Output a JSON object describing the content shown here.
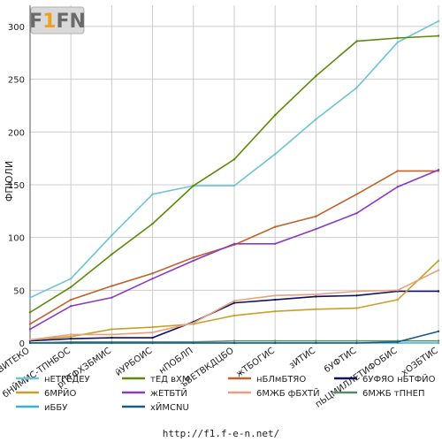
{
  "logo_text": "F1FN",
  "footer_url": "http://f1.f-e-n.net/",
  "chart_data": {
    "type": "line",
    "title": "",
    "xlabel": "",
    "ylabel": "ФПЮЛИ",
    "ylim": [
      0,
      320
    ],
    "yticks": [
      0,
      50,
      100,
      150,
      200,
      250,
      300
    ],
    "grid": true,
    "legend_placement": "bottom",
    "categories": [
      "вВИТЕКО",
      "бНЙМИС-ТПНБОС",
      "рПТФХЗБМИС",
      "йУРБОИС",
      "нПОБЛП",
      "ъВЕТВКДЦБО",
      "жТБОГИС",
      "зИТИС",
      "бУФТИС",
      "пЬЦМИЛЛЕТИФОБИС",
      "хОЗБТИС"
    ],
    "series": [
      {
        "name": "нЕТГЕДЕУ",
        "color": "#6cc4d4",
        "values": [
          43,
          61,
          102,
          141,
          149,
          149,
          179,
          212,
          242,
          285,
          305
        ]
      },
      {
        "name": "тЕД вХМ",
        "color": "#5a8a0a",
        "values": [
          29,
          53,
          84,
          113,
          149,
          174,
          216,
          253,
          286,
          289,
          291
        ]
      },
      {
        "name": "нБЛмБТЯО",
        "color": "#c0622a",
        "values": [
          18,
          41,
          54,
          66,
          81,
          93,
          110,
          120,
          141,
          163,
          163
        ]
      },
      {
        "name": "6УФЯО нБТФЙО",
        "color": "#101060",
        "values": [
          2,
          4,
          5,
          5,
          20,
          38,
          41,
          44,
          45,
          49,
          49
        ]
      },
      {
        "name": "6МРЙО",
        "color": "#c8a028",
        "values": [
          3,
          6,
          13,
          15,
          18,
          26,
          30,
          32,
          33,
          41,
          78
        ]
      },
      {
        "name": "жЕТБТЙ",
        "color": "#8a3ac0",
        "values": [
          13,
          35,
          43,
          61,
          78,
          94,
          94,
          108,
          123,
          148,
          164
        ]
      },
      {
        "name": "6МЖБ фБХТЙ",
        "color": "#e8a080",
        "values": [
          3,
          8,
          8,
          10,
          19,
          40,
          45,
          46,
          49,
          50,
          69
        ]
      },
      {
        "name": "6МЖБ тПНЕП",
        "color": "#5a8a6a",
        "values": [
          0,
          1,
          1,
          1,
          1,
          2,
          2,
          2,
          2,
          2,
          2
        ]
      },
      {
        "name": "иББУ",
        "color": "#3ab0d8",
        "values": [
          0,
          0,
          0,
          0,
          0,
          0,
          0,
          0,
          0,
          0,
          0
        ]
      },
      {
        "name": "хЙМСNU",
        "color": "#1a5a8a",
        "values": [
          0,
          0,
          0,
          0,
          0,
          0,
          0,
          0,
          0,
          1,
          11
        ]
      }
    ]
  }
}
